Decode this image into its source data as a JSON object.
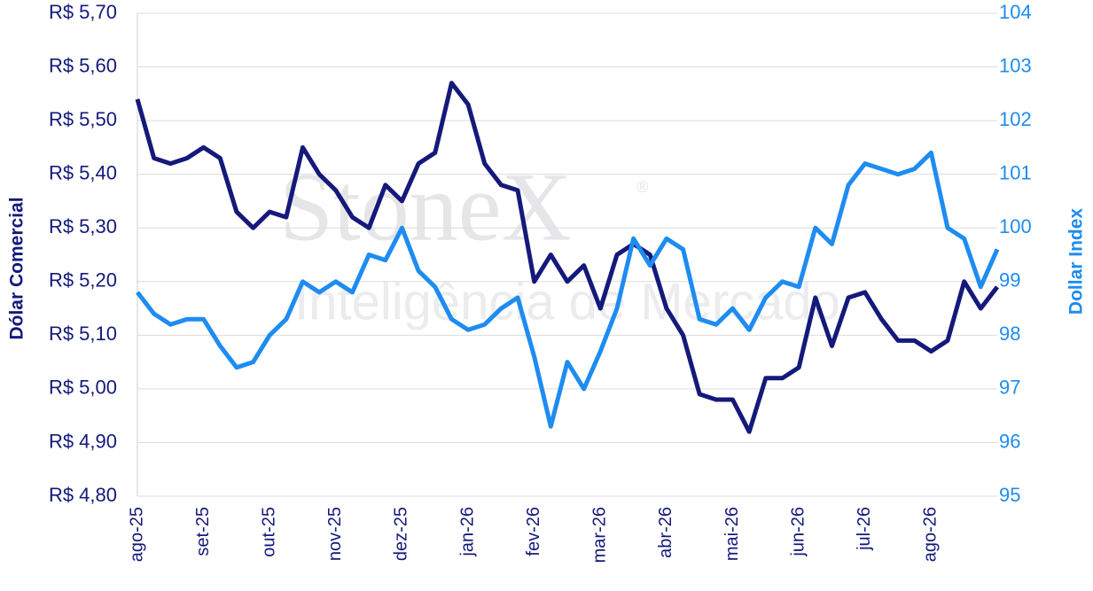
{
  "chart_data": {
    "type": "line",
    "watermark": {
      "brand": "StoneX",
      "mark": "®",
      "subtitle": "Inteligência de Mercado"
    },
    "ylabel": "Dólar Comercial",
    "y2label": "Dollar Index",
    "categories": [
      "ago-25",
      null,
      null,
      null,
      "set-25",
      null,
      null,
      null,
      "out-25",
      null,
      null,
      null,
      "nov-25",
      null,
      null,
      null,
      "dez-25",
      null,
      null,
      null,
      "jan-26",
      null,
      null,
      null,
      "fev-26",
      null,
      null,
      null,
      "mar-26",
      null,
      null,
      null,
      "abr-26",
      null,
      null,
      null,
      "mai-26",
      null,
      null,
      null,
      "jun-26",
      null,
      null,
      null,
      "jul-26",
      null,
      null,
      null,
      "ago-26",
      null,
      null,
      null,
      null
    ],
    "series": [
      {
        "name": "Dólar Comercial",
        "color": "#14197a",
        "axis": "y",
        "values": [
          5.54,
          5.43,
          5.42,
          5.43,
          5.45,
          5.43,
          5.33,
          5.3,
          5.33,
          5.32,
          5.45,
          5.4,
          5.37,
          5.32,
          5.3,
          5.38,
          5.35,
          5.42,
          5.44,
          5.57,
          5.53,
          5.42,
          5.38,
          5.37,
          5.2,
          5.25,
          5.2,
          5.23,
          5.15,
          5.25,
          5.27,
          5.25,
          5.15,
          5.1,
          4.99,
          4.98,
          4.98,
          4.92,
          5.02,
          5.02,
          5.04,
          5.17,
          5.08,
          5.17,
          5.18,
          5.13,
          5.09,
          5.09,
          5.07,
          5.09,
          5.2,
          5.15,
          5.19
        ]
      },
      {
        "name": "Dollar Index",
        "color": "#1e8cf0",
        "axis": "y2",
        "values": [
          98.8,
          98.4,
          98.2,
          98.3,
          98.3,
          97.8,
          97.4,
          97.5,
          98.0,
          98.3,
          99.0,
          98.8,
          99.0,
          98.8,
          99.5,
          99.4,
          100.0,
          99.2,
          98.9,
          98.3,
          98.1,
          98.2,
          98.5,
          98.7,
          97.6,
          96.3,
          97.5,
          97.0,
          97.7,
          98.5,
          99.8,
          99.3,
          99.8,
          99.6,
          98.3,
          98.2,
          98.5,
          98.1,
          98.7,
          99.0,
          98.9,
          100.0,
          99.7,
          100.8,
          101.2,
          101.1,
          101.0,
          101.1,
          101.4,
          100.0,
          99.8,
          98.9,
          99.6
        ]
      }
    ],
    "ylim": [
      4.8,
      5.7
    ],
    "yticks": [
      {
        "value": 4.8,
        "label": "R$ 4,80"
      },
      {
        "value": 4.9,
        "label": "R$ 4,90"
      },
      {
        "value": 5.0,
        "label": "R$ 5,00"
      },
      {
        "value": 5.1,
        "label": "R$ 5,10"
      },
      {
        "value": 5.2,
        "label": "R$ 5,20"
      },
      {
        "value": 5.3,
        "label": "R$ 5,30"
      },
      {
        "value": 5.4,
        "label": "R$ 5,40"
      },
      {
        "value": 5.5,
        "label": "R$ 5,50"
      },
      {
        "value": 5.6,
        "label": "R$ 5,60"
      },
      {
        "value": 5.7,
        "label": "R$ 5,70"
      }
    ],
    "y2lim": [
      95,
      104
    ],
    "y2ticks": [
      95,
      96,
      97,
      98,
      99,
      100,
      101,
      102,
      103,
      104
    ],
    "grid": true
  }
}
